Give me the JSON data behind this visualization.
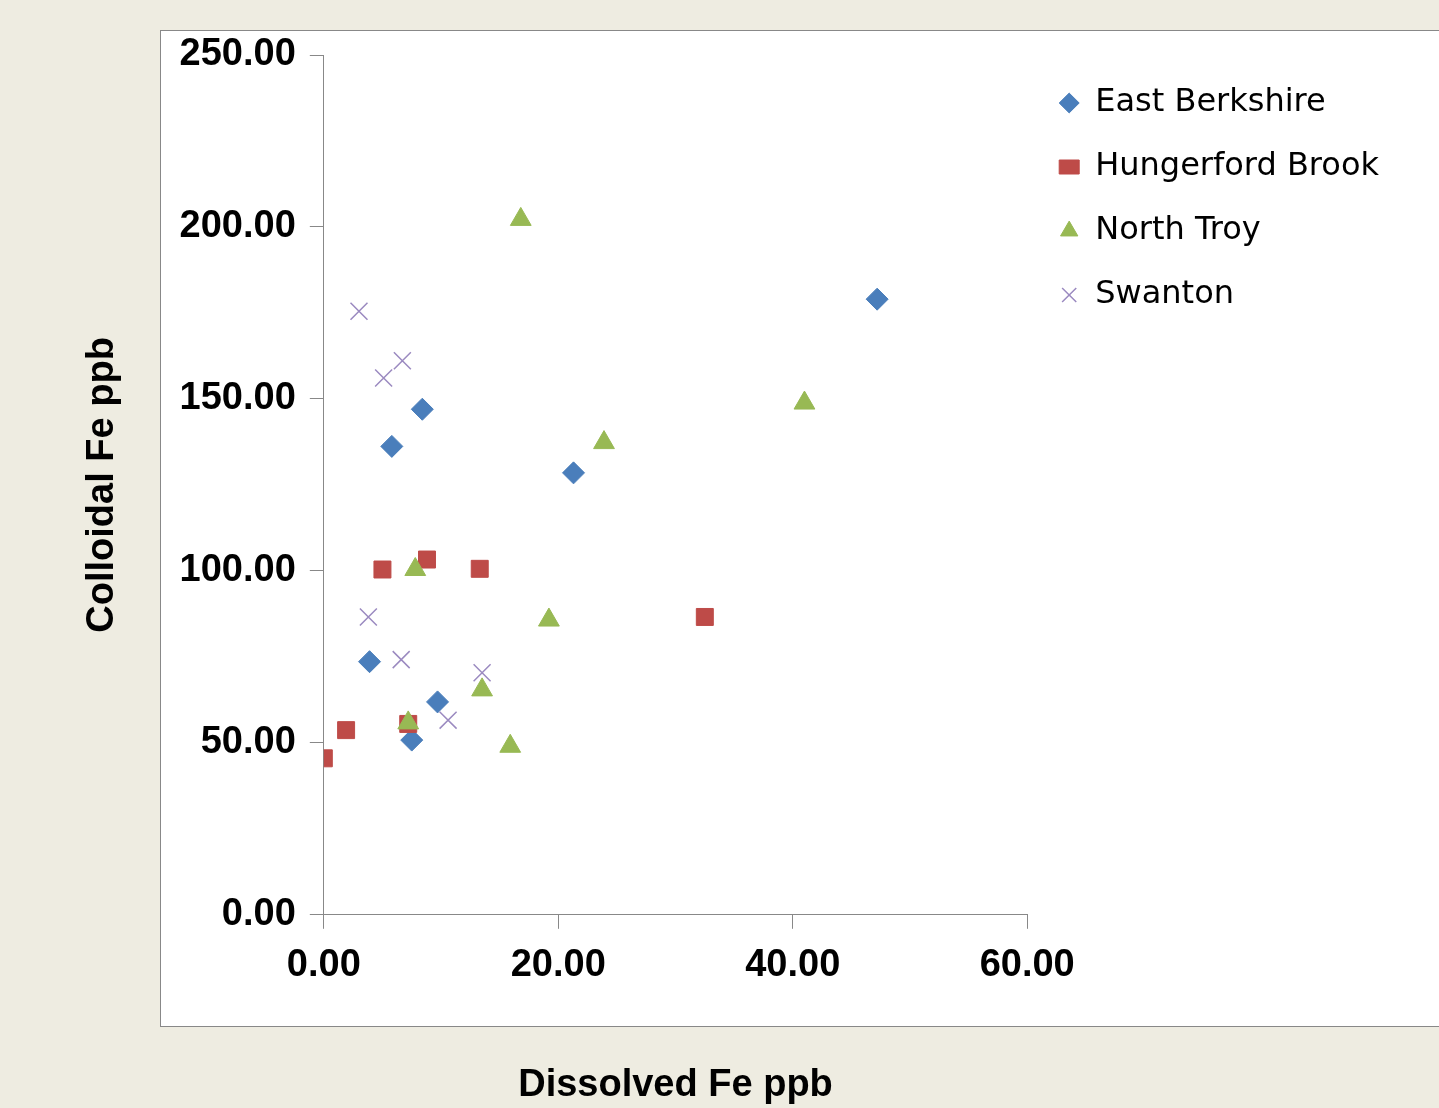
{
  "chart_data": {
    "type": "scatter",
    "xlabel": "Dissolved Fe ppb",
    "ylabel": "Colloidal Fe ppb",
    "xlim": [
      0,
      60
    ],
    "xticks": [
      {
        "value": 0,
        "label": "0.00"
      },
      {
        "value": 20,
        "label": "20.00"
      },
      {
        "value": 40,
        "label": "40.00"
      },
      {
        "value": 60,
        "label": "60.00"
      }
    ],
    "ylim": [
      0,
      250
    ],
    "yticks": [
      {
        "value": 0,
        "label": "0.00"
      },
      {
        "value": 50,
        "label": "50.00"
      },
      {
        "value": 100,
        "label": "100.00"
      },
      {
        "value": 150,
        "label": "150.00"
      },
      {
        "value": 200,
        "label": "200.00"
      },
      {
        "value": 250,
        "label": "250.00"
      }
    ],
    "grid": false,
    "legend": "right",
    "series": [
      {
        "name": "East Berkshire",
        "color": "#4a7ebb",
        "marker": "diamond",
        "x": [
          47.2,
          8.4,
          5.8,
          21.3,
          3.9,
          9.7,
          7.5
        ],
        "values": [
          179.0,
          147.0,
          136.2,
          128.5,
          73.6,
          61.9,
          50.8
        ]
      },
      {
        "name": "Hungerford Brook",
        "color": "#be4b48",
        "marker": "square",
        "x": [
          0.0,
          1.9,
          5.0,
          8.8,
          13.3,
          32.5,
          7.2
        ],
        "values": [
          45.5,
          53.7,
          100.4,
          103.3,
          100.6,
          86.6,
          55.5
        ]
      },
      {
        "name": "North Troy",
        "color": "#98b954",
        "marker": "triangle",
        "x": [
          16.8,
          41.0,
          23.9,
          7.8,
          19.2,
          13.5,
          7.2,
          15.9
        ],
        "values": [
          202.2,
          148.8,
          137.3,
          100.4,
          85.7,
          65.4,
          55.8,
          49.0
        ]
      },
      {
        "name": "Swanton",
        "color": "#9b8ac0",
        "marker": "cross",
        "x": [
          3.0,
          5.1,
          6.7,
          3.8,
          6.6,
          13.5,
          10.6
        ],
        "values": [
          175.5,
          156.1,
          161.1,
          86.6,
          74.2,
          70.4,
          56.6
        ]
      }
    ]
  }
}
